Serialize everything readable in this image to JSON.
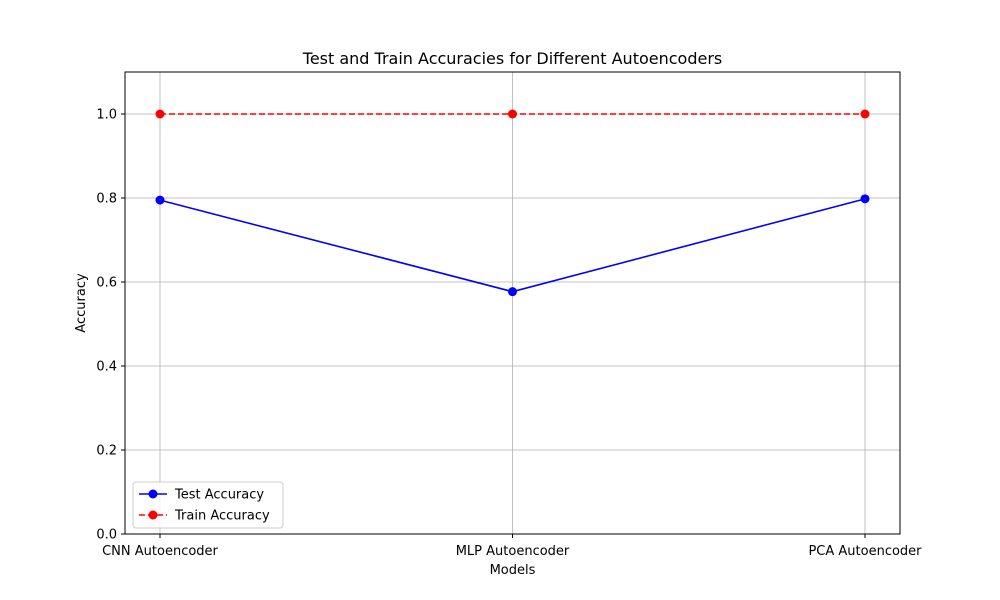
{
  "chart_data": {
    "type": "line",
    "title": "Test and Train Accuracies for Different Autoencoders",
    "xlabel": "Models",
    "ylabel": "Accuracy",
    "categories": [
      "CNN Autoencoder",
      "MLP Autoencoder",
      "PCA Autoencoder"
    ],
    "ylim": [
      0,
      1.1
    ],
    "yticks": [
      "0.0",
      "0.2",
      "0.4",
      "0.6",
      "0.8",
      "1.0"
    ],
    "grid": true,
    "legend_position": "lower-left",
    "series": [
      {
        "name": "Test Accuracy",
        "values": [
          0.795,
          0.577,
          0.798
        ],
        "color": "#0000ff",
        "linestyle": "solid",
        "marker": "circle"
      },
      {
        "name": "Train Accuracy",
        "values": [
          1.0,
          1.0,
          1.0
        ],
        "color": "#ff0000",
        "linestyle": "dashed",
        "marker": "circle"
      }
    ]
  }
}
